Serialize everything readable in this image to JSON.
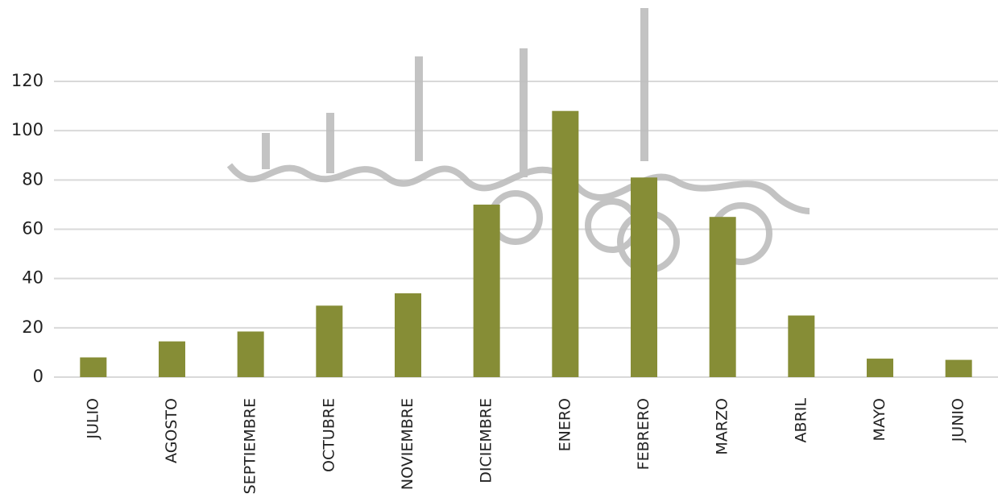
{
  "chart_data": {
    "type": "bar",
    "categories": [
      "JULIO",
      "AGOSTO",
      "SEPTIEMBRE",
      "OCTUBRE",
      "NOVIEMBRE",
      "DICIEMBRE",
      "ENERO",
      "FEBRERO",
      "MARZO",
      "ABRIL",
      "MAYO",
      "JUNIO"
    ],
    "values": [
      8,
      14.5,
      18.5,
      29,
      34,
      70,
      108,
      81,
      65,
      25,
      7.5,
      7
    ],
    "color": "#868d36",
    "ylim": [
      0,
      120
    ],
    "yticks": [
      0,
      20,
      40,
      60,
      80,
      100,
      120
    ],
    "grid": true
  }
}
